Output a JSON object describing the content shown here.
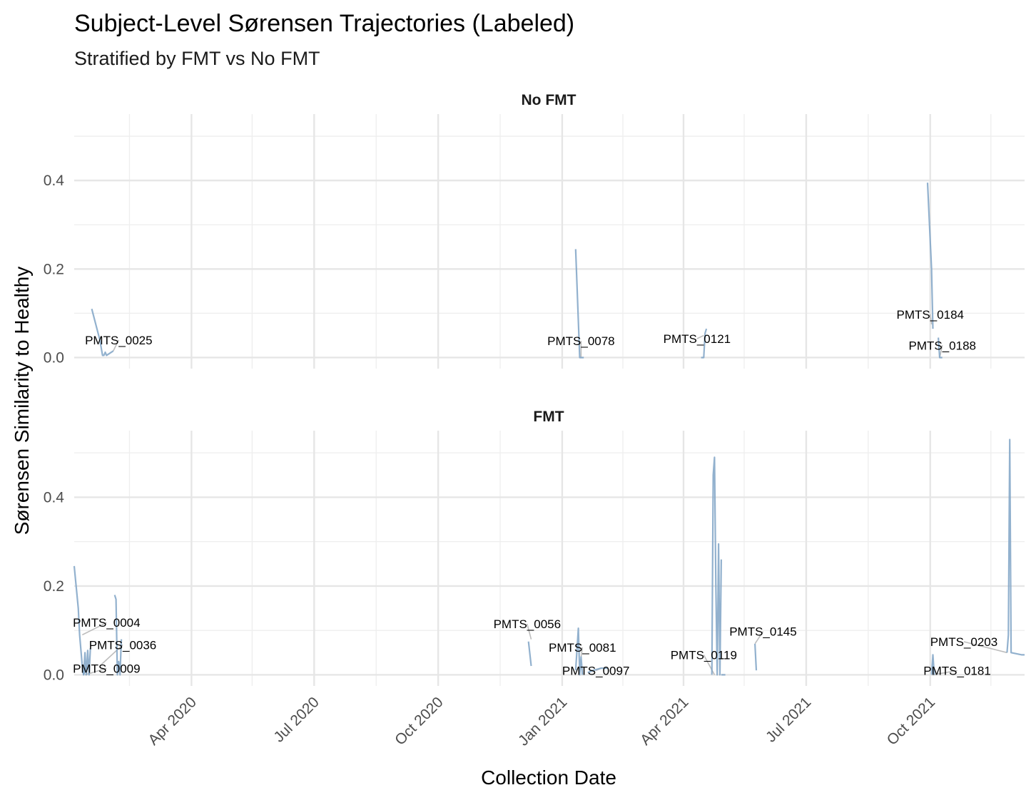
{
  "chart_data": {
    "type": "line",
    "title": "Subject-Level Sørensen Trajectories (Labeled)",
    "subtitle": "Stratified by FMT vs No FMT",
    "xlabel": "Collection Date",
    "ylabel": "Sørensen Similarity to Healthy",
    "xlim": [
      "2020-01-05",
      "2021-12-10"
    ],
    "ylim": [
      -0.025,
      0.55
    ],
    "x_ticks": [
      "2020-04-01",
      "2020-07-01",
      "2020-10-01",
      "2021-01-01",
      "2021-04-01",
      "2021-07-01",
      "2021-10-01"
    ],
    "x_tick_labels": [
      "Apr 2020",
      "Jul 2020",
      "Oct 2020",
      "Jan 2021",
      "Apr 2021",
      "Jul 2021",
      "Oct 2021"
    ],
    "y_ticks": [
      0.0,
      0.2,
      0.4
    ],
    "y_tick_labels": [
      "0.0",
      "0.2",
      "0.4"
    ],
    "grid": true,
    "line_color": "#7fa3c6",
    "connector_color": "#bdbdbd",
    "panels": [
      {
        "strip": "No FMT",
        "series": [
          {
            "x": [
              "2020-01-18",
              "2020-01-24",
              "2020-01-26",
              "2020-01-27",
              "2020-01-28",
              "2020-01-29",
              "2020-02-03"
            ],
            "y": [
              0.11,
              0.04,
              0.005,
              0.005,
              0.012,
              0.005,
              0.015
            ]
          },
          {
            "x": [
              "2021-01-11",
              "2021-01-14",
              "2021-01-17"
            ],
            "y": [
              0.245,
              0.0,
              0.0
            ]
          },
          {
            "x": [
              "2021-04-14",
              "2021-04-16",
              "2021-04-17",
              "2021-04-18"
            ],
            "y": [
              0.0,
              0.0,
              0.055,
              0.065
            ]
          },
          {
            "x": [
              "2021-09-29",
              "2021-10-02",
              "2021-10-03"
            ],
            "y": [
              0.395,
              0.2,
              0.065
            ]
          },
          {
            "x": [
              "2021-10-07",
              "2021-10-08",
              "2021-10-10"
            ],
            "y": [
              0.045,
              0.0,
              0.0
            ]
          }
        ],
        "labels": [
          {
            "text": "PMTS_0025",
            "x": "2020-02-07",
            "y": 0.03,
            "anchor_x": "2020-02-03",
            "anchor_y": 0.015
          },
          {
            "text": "PMTS_0078",
            "x": "2021-01-15",
            "y": 0.028,
            "anchor_x": "2021-01-15",
            "anchor_y": 0.0
          },
          {
            "text": "PMTS_0121",
            "x": "2021-04-11",
            "y": 0.033,
            "anchor_x": "2021-04-16",
            "anchor_y": 0.05
          },
          {
            "text": "PMTS_0184",
            "x": "2021-10-01",
            "y": 0.088,
            "anchor_x": "2021-10-02",
            "anchor_y": 0.075
          },
          {
            "text": "PMTS_0188",
            "x": "2021-10-10",
            "y": 0.018,
            "anchor_x": "2021-10-08",
            "anchor_y": 0.0
          }
        ]
      },
      {
        "strip": "FMT",
        "series": [
          {
            "x": [
              "2020-01-05",
              "2020-01-08",
              "2020-01-09",
              "2020-01-11",
              "2020-01-12",
              "2020-01-14"
            ],
            "y": [
              0.245,
              0.15,
              0.09,
              0.02,
              0.0,
              0.02
            ]
          },
          {
            "x": [
              "2020-01-12",
              "2020-01-13",
              "2020-01-14",
              "2020-01-15",
              "2020-01-16",
              "2020-01-17"
            ],
            "y": [
              0.0,
              0.05,
              0.0,
              0.055,
              0.0,
              0.06
            ]
          },
          {
            "x": [
              "2020-02-04",
              "2020-02-05",
              "2020-02-06",
              "2020-02-07",
              "2020-02-08",
              "2020-02-09"
            ],
            "y": [
              0.18,
              0.17,
              0.0,
              0.03,
              0.0,
              0.08
            ]
          },
          {
            "x": [
              "2020-12-07",
              "2020-12-09"
            ],
            "y": [
              0.075,
              0.02
            ]
          },
          {
            "x": [
              "2021-01-11",
              "2021-01-13",
              "2021-01-14",
              "2021-01-15",
              "2021-01-16"
            ],
            "y": [
              0.01,
              0.105,
              0.0,
              0.04,
              0.0
            ]
          },
          {
            "x": [
              "2021-01-20",
              "2021-01-24",
              "2021-01-30",
              "2021-02-04"
            ],
            "y": [
              0.005,
              0.01,
              0.015,
              0.015
            ]
          },
          {
            "x": [
              "2021-04-22",
              "2021-04-23",
              "2021-04-24",
              "2021-04-25",
              "2021-04-26",
              "2021-04-27",
              "2021-04-28",
              "2021-04-29"
            ],
            "y": [
              0.0,
              0.45,
              0.49,
              0.2,
              0.0,
              0.295,
              0.0,
              0.26
            ]
          },
          {
            "x": [
              "2021-04-29",
              "2021-04-30",
              "2021-05-02"
            ],
            "y": [
              0.0,
              0.0,
              0.0
            ]
          },
          {
            "x": [
              "2021-05-24",
              "2021-05-25"
            ],
            "y": [
              0.07,
              0.01
            ]
          },
          {
            "x": [
              "2021-10-02",
              "2021-10-03",
              "2021-10-04"
            ],
            "y": [
              0.0,
              0.045,
              0.0
            ]
          },
          {
            "x": [
              "2021-11-27",
              "2021-11-28",
              "2021-11-29",
              "2021-11-30",
              "2021-12-08",
              "2021-12-10"
            ],
            "y": [
              0.05,
              0.09,
              0.53,
              0.05,
              0.045,
              0.045
            ]
          }
        ],
        "labels": [
          {
            "text": "PMTS_0004",
            "x": "2020-01-29",
            "y": 0.108,
            "anchor_x": "2020-01-11",
            "anchor_y": 0.09
          },
          {
            "text": "PMTS_0036",
            "x": "2020-02-10",
            "y": 0.058,
            "anchor_x": "2020-01-24",
            "anchor_y": 0.02
          },
          {
            "text": "PMTS_0009",
            "x": "2020-01-29",
            "y": 0.005,
            "anchor_x": "2020-01-13",
            "anchor_y": 0.0
          },
          {
            "text": "PMTS_0056",
            "x": "2020-12-06",
            "y": 0.105,
            "anchor_x": "2020-12-09",
            "anchor_y": 0.08
          },
          {
            "text": "PMTS_0081",
            "x": "2021-01-16",
            "y": 0.052,
            "anchor_x": "2021-01-15",
            "anchor_y": 0.04
          },
          {
            "text": "PMTS_0097",
            "x": "2021-01-26",
            "y": 0.0,
            "anchor_x": "2021-01-30",
            "anchor_y": 0.015
          },
          {
            "text": "PMTS_0119",
            "x": "2021-04-16",
            "y": 0.035,
            "anchor_x": "2021-04-24",
            "anchor_y": 0.0
          },
          {
            "text": "PMTS_0145",
            "x": "2021-05-30",
            "y": 0.088,
            "anchor_x": "2021-05-24",
            "anchor_y": 0.07
          },
          {
            "text": "PMTS_0203",
            "x": "2021-10-26",
            "y": 0.065,
            "anchor_x": "2021-11-27",
            "anchor_y": 0.05
          },
          {
            "text": "PMTS_0181",
            "x": "2021-10-21",
            "y": 0.0,
            "anchor_x": "2021-10-03",
            "anchor_y": 0.0
          }
        ]
      }
    ]
  }
}
